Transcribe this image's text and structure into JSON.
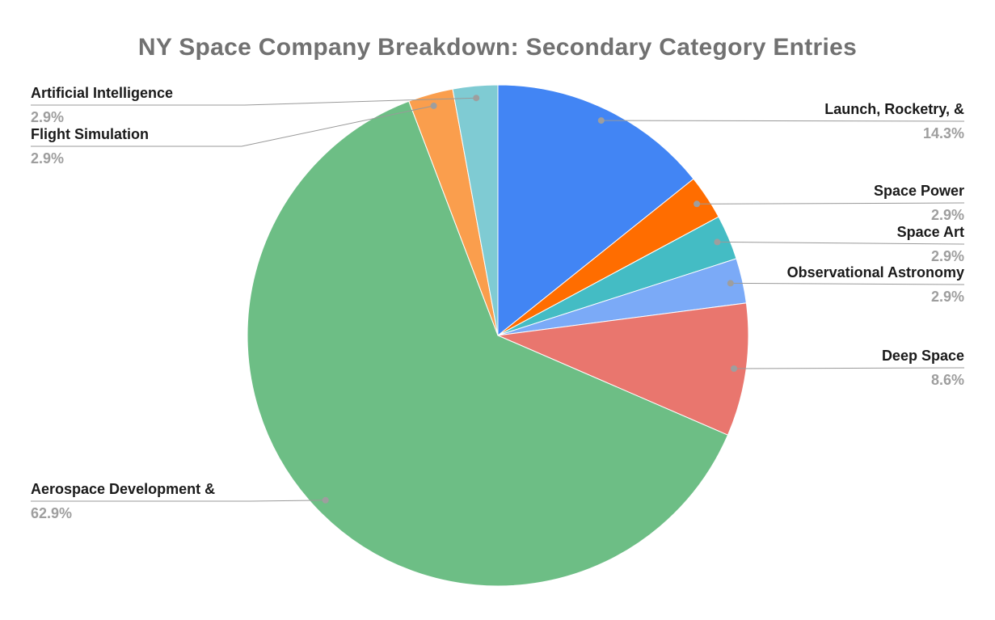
{
  "chart_data": {
    "type": "pie",
    "title": "NY Space Company Breakdown: Secondary Category Entries",
    "legend_position": "outside-callout-labels",
    "start_angle_deg": 0,
    "direction": "clockwise",
    "slices": [
      {
        "label": "Launch, Rocketry, &",
        "pct_label": "14.3%",
        "value": 14.3,
        "color": "#4285F4"
      },
      {
        "label": "Space Power",
        "pct_label": "2.9%",
        "value": 2.9,
        "color": "#FF6D00"
      },
      {
        "label": "Space Art",
        "pct_label": "2.9%",
        "value": 2.9,
        "color": "#44BCC4"
      },
      {
        "label": "Observational Astronomy",
        "pct_label": "2.9%",
        "value": 2.9,
        "color": "#7BAAF7"
      },
      {
        "label": "Deep Space",
        "pct_label": "8.6%",
        "value": 8.6,
        "color": "#E9766E"
      },
      {
        "label": "Aerospace Development &",
        "pct_label": "62.9%",
        "value": 62.9,
        "color": "#6DBE85"
      },
      {
        "label": "Flight Simulation",
        "pct_label": "2.9%",
        "value": 2.9,
        "color": "#FA9E4D"
      },
      {
        "label": "Artificial Intelligence",
        "pct_label": "2.9%",
        "value": 2.9,
        "color": "#7FCBD3"
      }
    ],
    "styles": {
      "title_color": "#717171",
      "label_color": "#1a1a1a",
      "percent_color": "#9e9e9e",
      "leader_line_color": "#999999",
      "slice_border_color": "#ffffff"
    }
  }
}
